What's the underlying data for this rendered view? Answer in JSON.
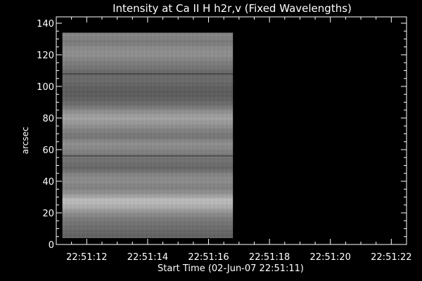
{
  "chart_data": {
    "type": "heatmap",
    "title": "Intensity at Ca II H h2r,v (Fixed Wavelengths)",
    "xlabel": "Start Time (02-Jun-07 22:51:11)",
    "ylabel": "arcsec",
    "x_tick_labels": [
      "22:51:12",
      "22:51:14",
      "22:51:16",
      "22:51:18",
      "22:51:20",
      "22:51:22"
    ],
    "x_tick_seconds": [
      1,
      3,
      5,
      7,
      9,
      11
    ],
    "x_range_seconds": [
      0,
      11.5
    ],
    "data_x_range_seconds": [
      0.2,
      5.8
    ],
    "y_ticks": [
      0,
      20,
      40,
      60,
      80,
      100,
      120,
      140
    ],
    "ylim": [
      0,
      144
    ],
    "data_y_range": [
      4,
      134
    ],
    "colormap": "grayscale",
    "intensity_profile": {
      "y": [
        4,
        8,
        12,
        16,
        20,
        24,
        28,
        32,
        36,
        40,
        44,
        48,
        52,
        56,
        60,
        64,
        68,
        72,
        76,
        80,
        84,
        88,
        92,
        96,
        100,
        104,
        108,
        112,
        116,
        120,
        124,
        128,
        132,
        134
      ],
      "value": [
        0.38,
        0.4,
        0.44,
        0.48,
        0.56,
        0.68,
        0.74,
        0.58,
        0.5,
        0.55,
        0.52,
        0.4,
        0.44,
        0.46,
        0.52,
        0.56,
        0.46,
        0.5,
        0.58,
        0.64,
        0.56,
        0.44,
        0.38,
        0.36,
        0.38,
        0.42,
        0.4,
        0.46,
        0.5,
        0.56,
        0.54,
        0.48,
        0.52,
        0.5
      ]
    },
    "dark_lines_y": [
      56,
      108
    ],
    "colors": {
      "background": "#000000",
      "foreground": "#ffffff"
    }
  }
}
